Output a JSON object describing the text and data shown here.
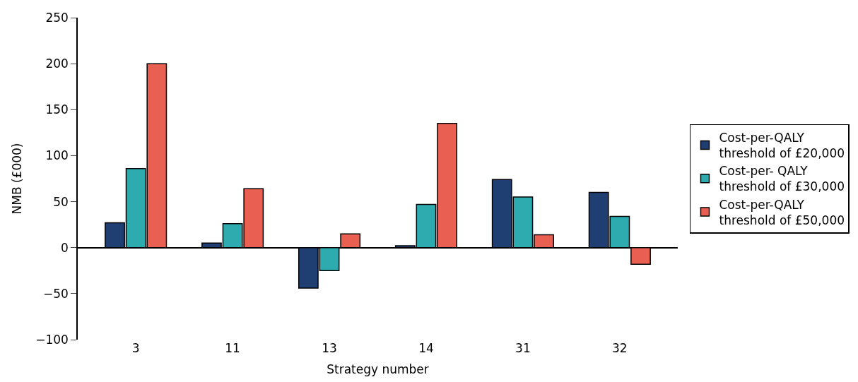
{
  "chart_data": {
    "type": "bar",
    "xlabel": "Strategy number",
    "ylabel": "NMB (£000)",
    "categories": [
      "3",
      "11",
      "13",
      "14",
      "31",
      "32"
    ],
    "series": [
      {
        "name": "Cost-per-QALY threshold of £20,000",
        "color": "#1f3f73",
        "values": [
          27,
          5,
          -44,
          2,
          74,
          60
        ]
      },
      {
        "name": "Cost-per- QALY threshold of £30,000",
        "color": "#2eabaf",
        "values": [
          86,
          26,
          -25,
          47,
          55,
          34
        ]
      },
      {
        "name": "Cost-per-QALY threshold of £50,000",
        "color": "#e96052",
        "values": [
          200,
          64,
          15,
          135,
          14,
          -18
        ]
      }
    ],
    "ylim": [
      -100,
      250
    ],
    "yticks": [
      {
        "value": -100,
        "label": "−100"
      },
      {
        "value": -50,
        "label": "−50"
      },
      0,
      50,
      100,
      150,
      200,
      250
    ],
    "legend": "right"
  }
}
